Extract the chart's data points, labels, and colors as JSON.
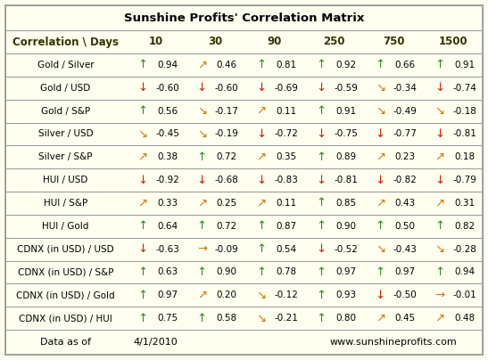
{
  "title": "Sunshine Profits' Correlation Matrix",
  "header_row": [
    "Correlation \\ Days",
    "10",
    "30",
    "90",
    "250",
    "750",
    "1500"
  ],
  "rows": [
    [
      "Gold / Silver",
      "up_g",
      "0.94",
      "diag_up_o",
      "0.46",
      "up_g",
      "0.81",
      "up_g",
      "0.92",
      "up_g",
      "0.66",
      "up_g",
      "0.91"
    ],
    [
      "Gold / USD",
      "dn_r",
      "-0.60",
      "dn_r",
      "-0.60",
      "dn_r",
      "-0.69",
      "dn_r",
      "-0.59",
      "diag_dn_o",
      "-0.34",
      "dn_r",
      "-0.74"
    ],
    [
      "Gold / S&P",
      "up_g",
      "0.56",
      "diag_dn_o",
      "-0.17",
      "diag_up_o",
      "0.11",
      "up_g",
      "0.91",
      "diag_dn_o",
      "-0.49",
      "diag_dn_o",
      "-0.18"
    ],
    [
      "Silver / USD",
      "diag_dn_o",
      "-0.45",
      "diag_dn_o",
      "-0.19",
      "dn_r",
      "-0.72",
      "dn_r",
      "-0.75",
      "dn_r",
      "-0.77",
      "dn_r",
      "-0.81"
    ],
    [
      "Silver / S&P",
      "diag_up_o",
      "0.38",
      "up_g",
      "0.72",
      "diag_up_o",
      "0.35",
      "up_g",
      "0.89",
      "diag_up_o",
      "0.23",
      "diag_up_o",
      "0.18"
    ],
    [
      "HUI / USD",
      "dn_r",
      "-0.92",
      "dn_r",
      "-0.68",
      "dn_r",
      "-0.83",
      "dn_r",
      "-0.81",
      "dn_r",
      "-0.82",
      "dn_r",
      "-0.79"
    ],
    [
      "HUI / S&P",
      "diag_up_o",
      "0.33",
      "diag_up_o",
      "0.25",
      "diag_up_o",
      "0.11",
      "up_g",
      "0.85",
      "diag_up_o",
      "0.43",
      "diag_up_o",
      "0.31"
    ],
    [
      "HUI / Gold",
      "up_g",
      "0.64",
      "up_g",
      "0.72",
      "up_g",
      "0.87",
      "up_g",
      "0.90",
      "up_g",
      "0.50",
      "up_g",
      "0.82"
    ],
    [
      "CDNX (in USD) / USD",
      "dn_r",
      "-0.63",
      "right_o",
      "-0.09",
      "up_g",
      "0.54",
      "dn_r",
      "-0.52",
      "diag_dn_o",
      "-0.43",
      "diag_dn_o",
      "-0.28"
    ],
    [
      "CDNX (in USD) / S&P",
      "up_g",
      "0.63",
      "up_g",
      "0.90",
      "up_g",
      "0.78",
      "up_g",
      "0.97",
      "up_g",
      "0.97",
      "up_g",
      "0.94"
    ],
    [
      "CDNX (in USD) / Gold",
      "up_g",
      "0.97",
      "diag_up_o",
      "0.20",
      "diag_dn_o",
      "-0.12",
      "up_g",
      "0.93",
      "dn_r",
      "-0.50",
      "right_o",
      "-0.01"
    ],
    [
      "CDNX (in USD) / HUI",
      "up_g",
      "0.75",
      "up_g",
      "0.58",
      "diag_dn_o",
      "-0.21",
      "up_g",
      "0.80",
      "diag_up_o",
      "0.45",
      "diag_up_o",
      "0.48"
    ]
  ],
  "footer_left": "Data as of",
  "footer_date": "4/1/2010",
  "footer_right": "www.sunshineprofits.com",
  "bg_color": "#FFFFF0",
  "border_color": "#999999",
  "green": "#2E8B22",
  "red": "#CC2200",
  "orange": "#CC7700",
  "dark_gold": "#8B6914",
  "title_fontsize": 9.5,
  "header_fontsize": 8.5,
  "label_fontsize": 7.5,
  "value_fontsize": 7.5,
  "arrow_fontsize": 9.5
}
